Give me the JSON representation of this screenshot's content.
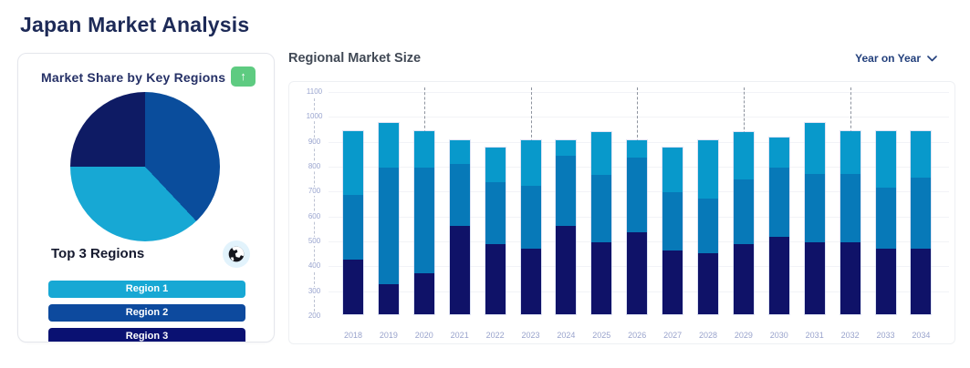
{
  "page": {
    "title": "Japan Market Analysis"
  },
  "left_card": {
    "title": "Market Share by Key Regions",
    "export_button": {
      "icon": "arrow-up",
      "glyph": "↑",
      "color": "#5ecb81"
    },
    "subheader": "Top 3 Regions",
    "globe_button": {
      "icon": "globe"
    },
    "regions": [
      {
        "label": "Region 1",
        "color": "#17a8d4"
      },
      {
        "label": "Region 2",
        "color": "#0d4a9e"
      },
      {
        "label": "Region 3",
        "color": "#0a1172"
      }
    ]
  },
  "right_panel": {
    "title": "Regional Market Size",
    "filter": {
      "label": "Year on Year",
      "icon": "chevron-down"
    }
  },
  "colors": {
    "heading": "#1d2a57",
    "axis_label": "#9aa5cf",
    "dashed_guide": "#8d939e",
    "card_border": "#e4e6ec"
  },
  "chart_data": [
    {
      "type": "pie",
      "title": "Market Share by Key Regions",
      "direction": "clockwise",
      "start_angle_deg": 0,
      "slices": [
        {
          "label": "Region 2",
          "value": 38,
          "color": "#0a4d9c"
        },
        {
          "label": "Region 1",
          "value": 37,
          "color": "#17a8d4"
        },
        {
          "label": "Region 3",
          "value": 25,
          "color": "#0e1b64"
        }
      ],
      "legend_position": "none"
    },
    {
      "type": "bar",
      "stacked": true,
      "title": "Regional Market Size",
      "x": [
        "2018",
        "2019",
        "2020",
        "2021",
        "2022",
        "2023",
        "2024",
        "2025",
        "2026",
        "2027",
        "2028",
        "2029",
        "2030",
        "2031",
        "2032",
        "2033",
        "2034"
      ],
      "ylim": [
        200,
        1100
      ],
      "baseline": 200,
      "y_ticks": [
        200,
        300,
        400,
        500,
        600,
        700,
        800,
        900,
        1000,
        1100
      ],
      "series": [
        {
          "name": "bottom-segment",
          "color": "#0f1268",
          "stack_top": [
            420,
            320,
            365,
            555,
            480,
            465,
            555,
            490,
            530,
            455,
            445,
            480,
            510,
            490,
            490,
            465,
            465
          ]
        },
        {
          "name": "middle-segment",
          "color": "#0779b8",
          "stack_top": [
            680,
            790,
            790,
            805,
            730,
            715,
            835,
            760,
            830,
            690,
            665,
            740,
            790,
            765,
            765,
            710,
            750
          ]
        },
        {
          "name": "top-segment",
          "color": "#0899cb",
          "stack_top": [
            935,
            970,
            935,
            900,
            870,
            900,
            900,
            930,
            900,
            870,
            900,
            930,
            910,
            970,
            935,
            935,
            935
          ]
        }
      ],
      "dashed_guide_years": [
        "2020",
        "2023",
        "2026",
        "2029",
        "2032"
      ],
      "grid": "horizontal-light",
      "legend_position": "none"
    }
  ]
}
